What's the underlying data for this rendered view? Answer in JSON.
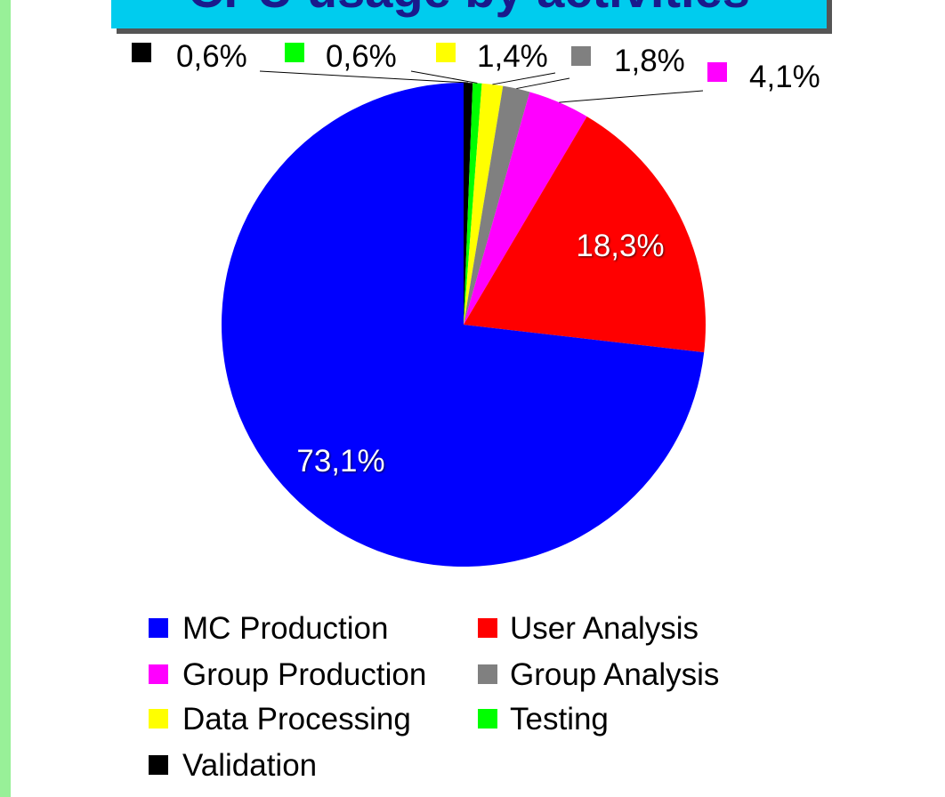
{
  "chart_data": {
    "type": "pie",
    "title": "CPU usage by activities",
    "categories": [
      "MC Production",
      "User Analysis",
      "Group Production",
      "Group Analysis",
      "Data Processing",
      "Testing",
      "Validation"
    ],
    "values": [
      73.1,
      18.3,
      4.1,
      1.8,
      1.4,
      0.6,
      0.6
    ],
    "value_labels": [
      "73,1%",
      "18,3%",
      "4,1%",
      "1,8%",
      "1,4%",
      "0,6%",
      "0,6%"
    ],
    "colors": [
      "#0000ff",
      "#ff0000",
      "#ff00ff",
      "#808080",
      "#ffff00",
      "#00ff00",
      "#000000"
    ],
    "legend": "bottom"
  }
}
